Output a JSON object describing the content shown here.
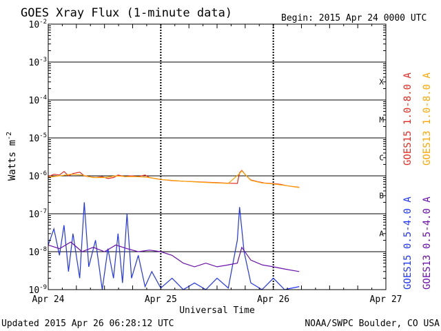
{
  "chart_data": {
    "type": "line",
    "title": "GOES Xray Flux (1-minute data)",
    "begin_label": "Begin:  2015 Apr 24 0000 UTC",
    "ylabel": "Watts m",
    "ylabel_sup": "-2",
    "xlabel": "Universal Time",
    "yscale": "log",
    "ylim": [
      1e-09,
      0.01
    ],
    "y_ticks": [
      {
        "base": "10",
        "exp": "-9",
        "value": 1e-09
      },
      {
        "base": "10",
        "exp": "-8",
        "value": 1e-08
      },
      {
        "base": "10",
        "exp": "-7",
        "value": 1e-07
      },
      {
        "base": "10",
        "exp": "-6",
        "value": 1e-06
      },
      {
        "base": "10",
        "exp": "-5",
        "value": 1e-05
      },
      {
        "base": "10",
        "exp": "-4",
        "value": 0.0001
      },
      {
        "base": "10",
        "exp": "-3",
        "value": 0.001
      },
      {
        "base": "10",
        "exp": "-2",
        "value": 0.01
      }
    ],
    "x_ticks": [
      {
        "label": "Apr 24",
        "day": 0
      },
      {
        "label": "Apr 25",
        "day": 1
      },
      {
        "label": "Apr 26",
        "day": 2
      },
      {
        "label": "Apr 27",
        "day": 3
      }
    ],
    "xlim_days": [
      0,
      3
    ],
    "flare_classes": [
      {
        "label": "A",
        "lo": 1e-08,
        "hi": 1e-07
      },
      {
        "label": "B",
        "lo": 1e-07,
        "hi": 1e-06
      },
      {
        "label": "C",
        "lo": 1e-06,
        "hi": 1e-05
      },
      {
        "label": "M",
        "lo": 1e-05,
        "hi": 0.0001
      },
      {
        "label": "X",
        "lo": 0.0001,
        "hi": 0.001
      }
    ],
    "grid": true,
    "series": [
      {
        "name": "GOES15 1.0-8.0 A",
        "color": "#e8281e",
        "points": [
          [
            0.0,
            9.5e-07
          ],
          [
            0.05,
            1.1e-06
          ],
          [
            0.1,
            1.05e-06
          ],
          [
            0.14,
            1.3e-06
          ],
          [
            0.18,
            1e-06
          ],
          [
            0.22,
            1.15e-06
          ],
          [
            0.28,
            1.25e-06
          ],
          [
            0.32,
            1e-06
          ],
          [
            0.36,
            9.5e-07
          ],
          [
            0.42,
            9e-07
          ],
          [
            0.48,
            9.5e-07
          ],
          [
            0.53,
            8.5e-07
          ],
          [
            0.58,
            9e-07
          ],
          [
            0.62,
            1.05e-06
          ],
          [
            0.68,
            9.5e-07
          ],
          [
            0.74,
            1e-06
          ],
          [
            0.8,
            9.5e-07
          ],
          [
            0.86,
            1.05e-06
          ],
          [
            0.9,
            9e-07
          ],
          [
            0.95,
            8.5e-07
          ],
          [
            1.0,
            8e-07
          ],
          [
            1.1,
            7.5e-07
          ],
          [
            1.2,
            7.2e-07
          ],
          [
            1.3,
            7e-07
          ],
          [
            1.4,
            6.8e-07
          ],
          [
            1.5,
            6.6e-07
          ],
          [
            1.6,
            6.4e-07
          ],
          [
            1.68,
            6.3e-07
          ],
          [
            1.7,
            1.2e-06
          ],
          [
            1.72,
            1.4e-06
          ],
          [
            1.76,
            1e-06
          ],
          [
            1.8,
            7.8e-07
          ],
          [
            1.86,
            7e-07
          ],
          [
            1.92,
            6.5e-07
          ],
          [
            2.0,
            6.2e-07
          ],
          [
            2.06,
            6e-07
          ],
          [
            2.12,
            5.5e-07
          ],
          [
            2.18,
            5.2e-07
          ],
          [
            2.23,
            5e-07
          ]
        ]
      },
      {
        "name": "GOES13 1.0-8.0 A",
        "color": "#ffa500",
        "points": [
          [
            0.0,
            9.2e-07
          ],
          [
            0.1,
            1e-06
          ],
          [
            0.2,
            1.1e-06
          ],
          [
            0.3,
            1.05e-06
          ],
          [
            0.4,
            9e-07
          ],
          [
            0.5,
            9e-07
          ],
          [
            0.6,
            1e-06
          ],
          [
            0.7,
            9.5e-07
          ],
          [
            0.8,
            9.5e-07
          ],
          [
            0.9,
            9e-07
          ],
          [
            1.0,
            8e-07
          ],
          [
            1.2,
            7.2e-07
          ],
          [
            1.4,
            6.7e-07
          ],
          [
            1.6,
            6.3e-07
          ],
          [
            1.7,
            1.15e-06
          ],
          [
            1.72,
            1.35e-06
          ],
          [
            1.8,
            7.6e-07
          ],
          [
            1.9,
            6.5e-07
          ],
          [
            2.0,
            6.1e-07
          ],
          [
            2.1,
            5.6e-07
          ],
          [
            2.23,
            4.9e-07
          ]
        ]
      },
      {
        "name": "GOES15 0.5-4.0 A",
        "color": "#1e32ff",
        "points": [
          [
            0.0,
            1.5e-08
          ],
          [
            0.05,
            4e-08
          ],
          [
            0.1,
            8e-09
          ],
          [
            0.14,
            5e-08
          ],
          [
            0.18,
            3e-09
          ],
          [
            0.22,
            3e-08
          ],
          [
            0.28,
            2e-09
          ],
          [
            0.32,
            2e-07
          ],
          [
            0.36,
            4e-09
          ],
          [
            0.42,
            2e-08
          ],
          [
            0.48,
            1e-09
          ],
          [
            0.53,
            1.2e-08
          ],
          [
            0.58,
            2e-09
          ],
          [
            0.62,
            3e-08
          ],
          [
            0.66,
            1.5e-09
          ],
          [
            0.7,
            1e-07
          ],
          [
            0.74,
            2e-09
          ],
          [
            0.8,
            8e-09
          ],
          [
            0.86,
            1.2e-09
          ],
          [
            0.92,
            3e-09
          ],
          [
            1.0,
            1.1e-09
          ],
          [
            1.1,
            2e-09
          ],
          [
            1.2,
            1e-09
          ],
          [
            1.3,
            1.5e-09
          ],
          [
            1.4,
            1e-09
          ],
          [
            1.5,
            2e-09
          ],
          [
            1.6,
            1.1e-09
          ],
          [
            1.68,
            2e-08
          ],
          [
            1.7,
            1.5e-07
          ],
          [
            1.74,
            1e-08
          ],
          [
            1.8,
            1.5e-09
          ],
          [
            1.9,
            1e-09
          ],
          [
            2.0,
            2e-09
          ],
          [
            2.1,
            1e-09
          ],
          [
            2.23,
            1.2e-09
          ]
        ]
      },
      {
        "name": "GOES13 0.5-4.0 A",
        "color": "#6a0dad",
        "points": [
          [
            0.0,
            1.5e-08
          ],
          [
            0.1,
            1.2e-08
          ],
          [
            0.2,
            1.8e-08
          ],
          [
            0.3,
            1e-08
          ],
          [
            0.4,
            1.3e-08
          ],
          [
            0.5,
            1e-08
          ],
          [
            0.6,
            1.5e-08
          ],
          [
            0.7,
            1.2e-08
          ],
          [
            0.8,
            1e-08
          ],
          [
            0.9,
            1.1e-08
          ],
          [
            1.0,
            1e-08
          ],
          [
            1.1,
            8e-09
          ],
          [
            1.2,
            5e-09
          ],
          [
            1.3,
            4e-09
          ],
          [
            1.4,
            5e-09
          ],
          [
            1.5,
            4e-09
          ],
          [
            1.6,
            4.5e-09
          ],
          [
            1.68,
            5e-09
          ],
          [
            1.72,
            1.3e-08
          ],
          [
            1.8,
            6e-09
          ],
          [
            1.9,
            4.5e-09
          ],
          [
            2.0,
            4e-09
          ],
          [
            2.1,
            3.5e-09
          ],
          [
            2.23,
            3e-09
          ]
        ]
      }
    ],
    "legend_placement": "right"
  },
  "footer": {
    "updated": "Updated 2015 Apr 26 06:28:12 UTC",
    "credit": "NOAA/SWPC Boulder, CO USA"
  }
}
